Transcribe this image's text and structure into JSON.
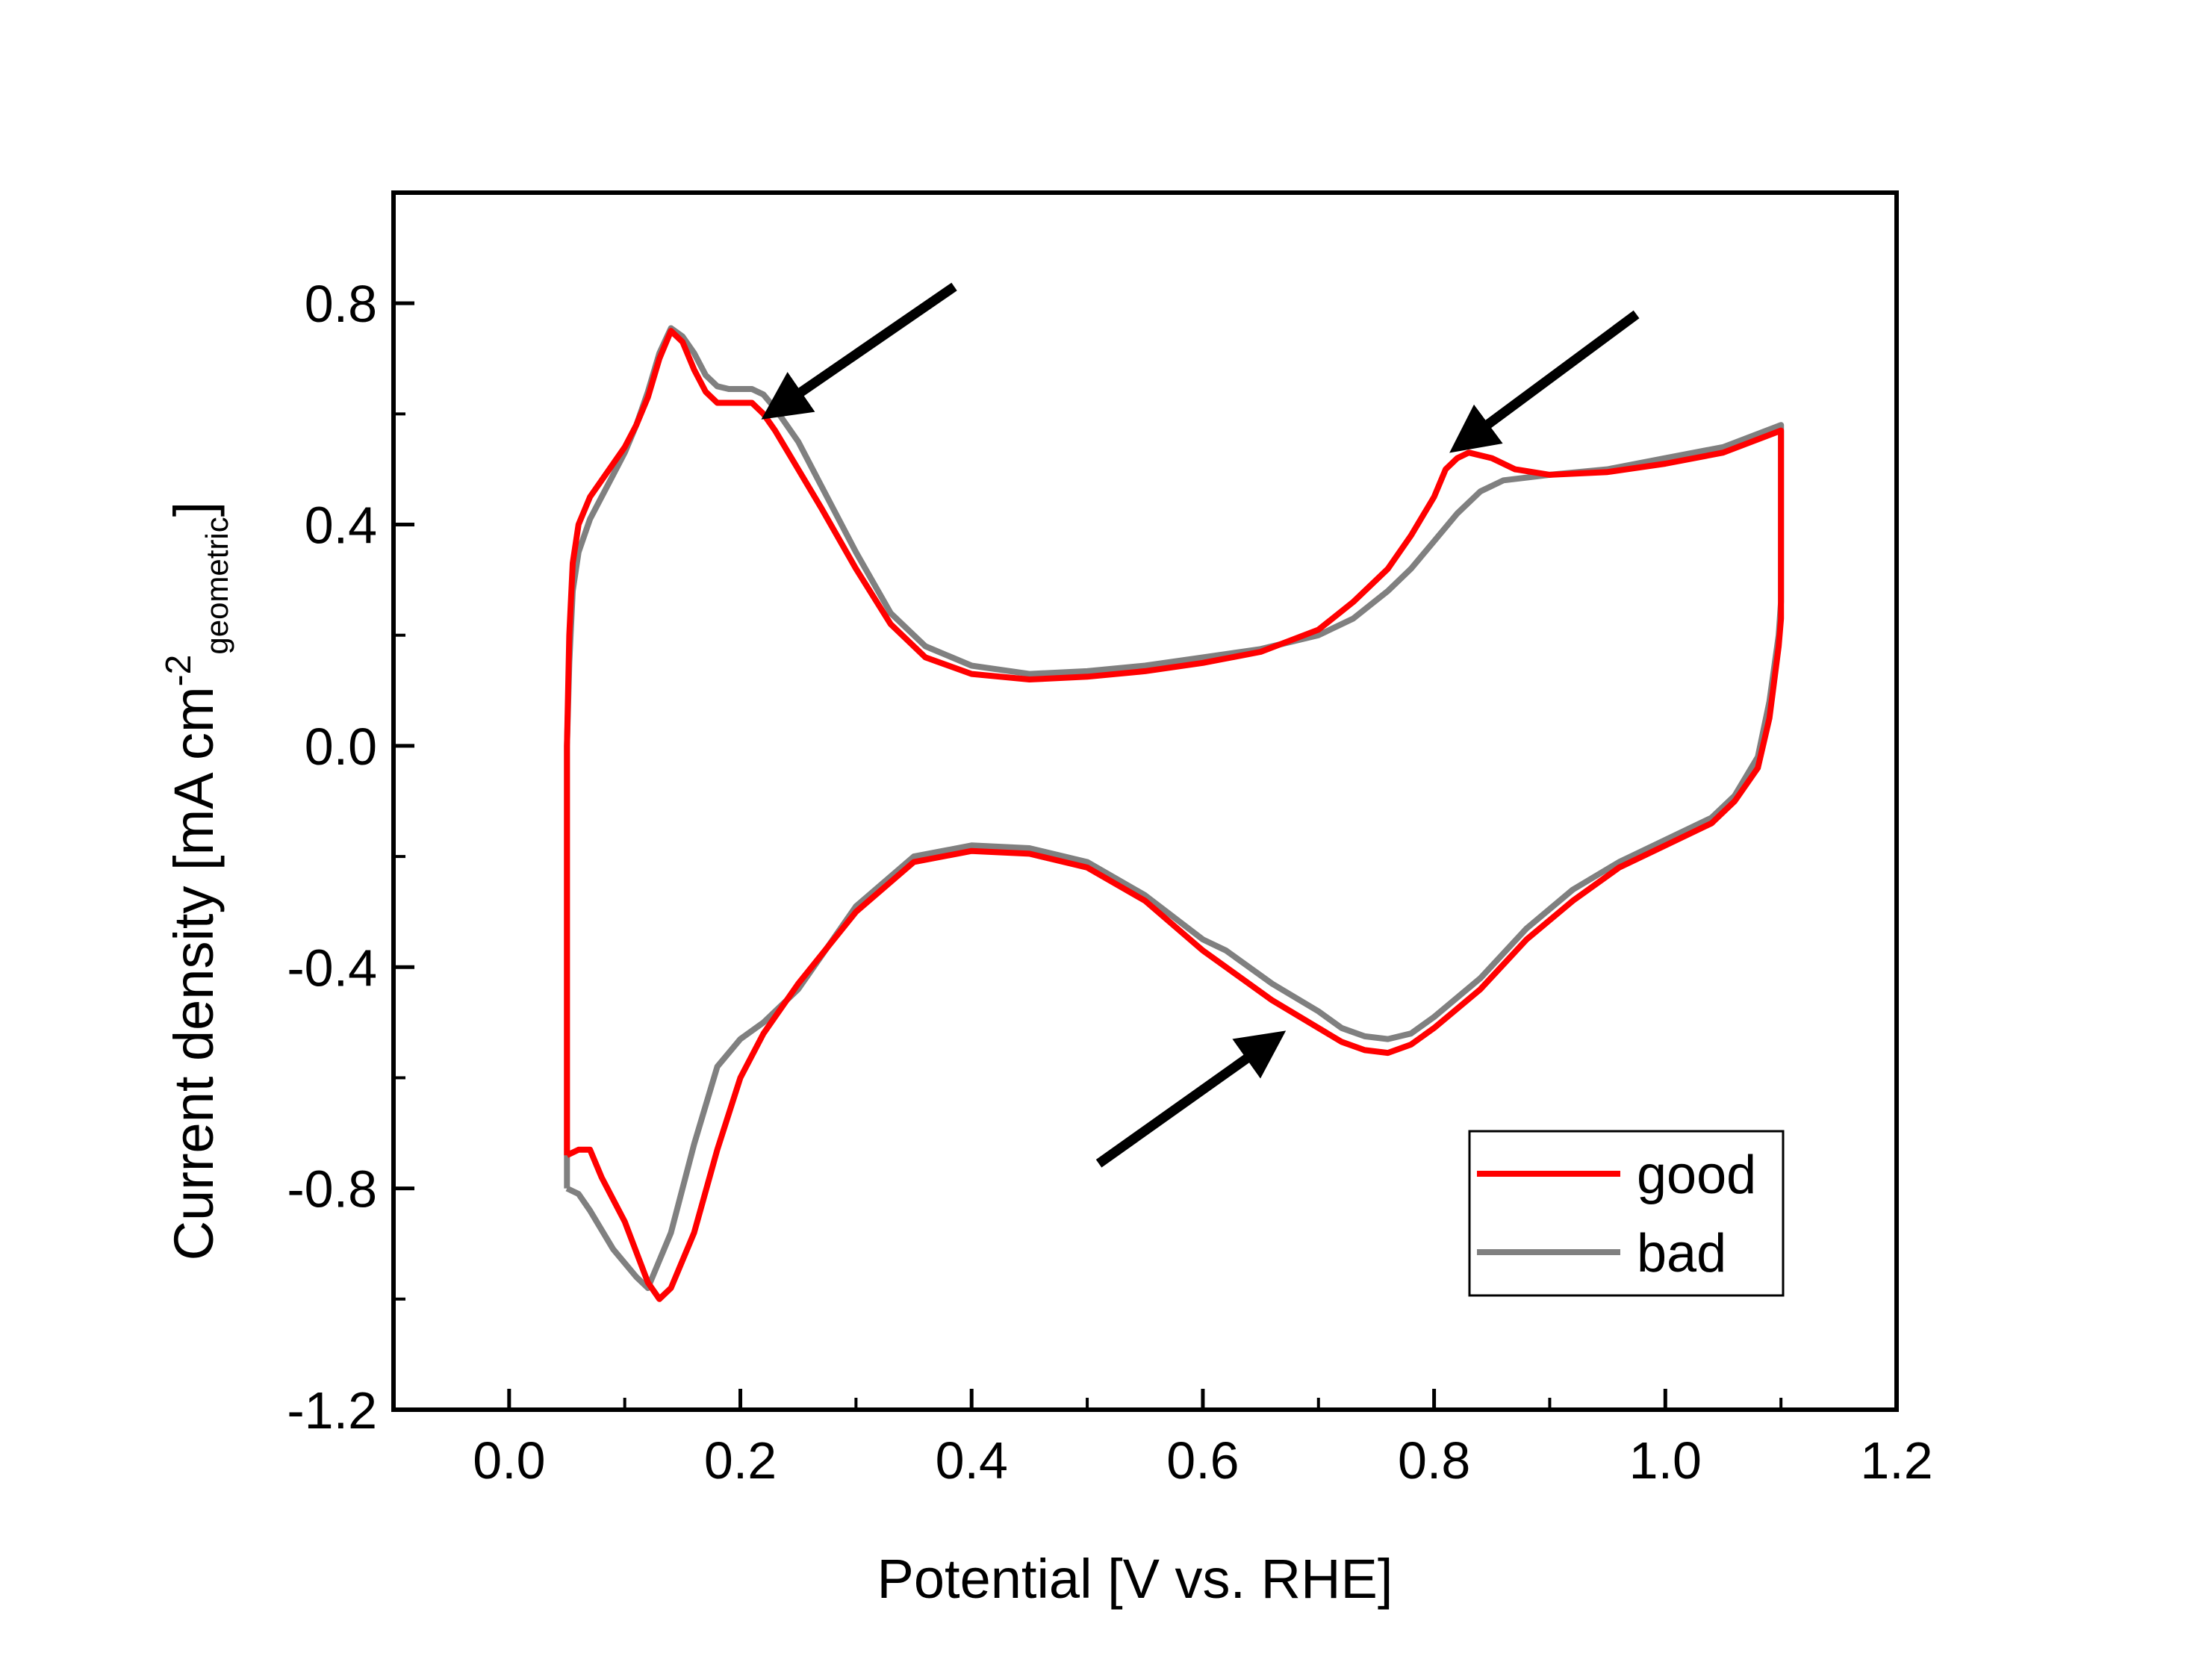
{
  "chart_data": {
    "type": "line",
    "title": "",
    "xlabel": "Potential [V vs. RHE]",
    "ylabel": {
      "main": "Current density [mA cm",
      "sup": "-2",
      "sub": "geometric",
      "close": "]"
    },
    "xlim": [
      -0.1,
      1.2
    ],
    "ylim": [
      -1.2,
      1.0
    ],
    "xticks": [
      0.0,
      0.2,
      0.4,
      0.6,
      0.8,
      1.0,
      1.2
    ],
    "xtick_labels": [
      "0.0",
      "0.2",
      "0.4",
      "0.6",
      "0.8",
      "1.0",
      "1.2"
    ],
    "yticks": [
      -1.2,
      -0.8,
      -0.4,
      0.0,
      0.4,
      0.8
    ],
    "ytick_labels": [
      "-1.2",
      "-0.8",
      "-0.4",
      "0.0",
      "0.4",
      "0.8"
    ],
    "legend_position": "bottom-right",
    "series": [
      {
        "name": "good",
        "color": "#ff0000",
        "points": [
          [
            0.05,
            -0.74
          ],
          [
            0.05,
            -0.6
          ],
          [
            0.05,
            -0.35
          ],
          [
            0.05,
            0.0
          ],
          [
            0.052,
            0.2
          ],
          [
            0.055,
            0.33
          ],
          [
            0.06,
            0.4
          ],
          [
            0.07,
            0.45
          ],
          [
            0.08,
            0.48
          ],
          [
            0.09,
            0.51
          ],
          [
            0.1,
            0.54
          ],
          [
            0.11,
            0.58
          ],
          [
            0.12,
            0.63
          ],
          [
            0.13,
            0.7
          ],
          [
            0.14,
            0.75
          ],
          [
            0.15,
            0.73
          ],
          [
            0.16,
            0.68
          ],
          [
            0.17,
            0.64
          ],
          [
            0.18,
            0.62
          ],
          [
            0.19,
            0.62
          ],
          [
            0.2,
            0.62
          ],
          [
            0.21,
            0.62
          ],
          [
            0.22,
            0.6
          ],
          [
            0.23,
            0.57
          ],
          [
            0.25,
            0.5
          ],
          [
            0.27,
            0.43
          ],
          [
            0.3,
            0.32
          ],
          [
            0.33,
            0.22
          ],
          [
            0.36,
            0.16
          ],
          [
            0.4,
            0.13
          ],
          [
            0.45,
            0.12
          ],
          [
            0.5,
            0.125
          ],
          [
            0.55,
            0.135
          ],
          [
            0.6,
            0.15
          ],
          [
            0.65,
            0.17
          ],
          [
            0.7,
            0.21
          ],
          [
            0.73,
            0.26
          ],
          [
            0.76,
            0.32
          ],
          [
            0.78,
            0.38
          ],
          [
            0.8,
            0.45
          ],
          [
            0.81,
            0.5
          ],
          [
            0.82,
            0.52
          ],
          [
            0.83,
            0.53
          ],
          [
            0.85,
            0.52
          ],
          [
            0.87,
            0.5
          ],
          [
            0.9,
            0.49
          ],
          [
            0.95,
            0.495
          ],
          [
            1.0,
            0.51
          ],
          [
            1.05,
            0.53
          ],
          [
            1.1,
            0.57
          ],
          [
            1.1,
            0.4
          ],
          [
            1.1,
            0.23
          ],
          [
            1.098,
            0.18
          ],
          [
            1.09,
            0.05
          ],
          [
            1.08,
            -0.04
          ],
          [
            1.06,
            -0.1
          ],
          [
            1.04,
            -0.14
          ],
          [
            1.0,
            -0.18
          ],
          [
            0.96,
            -0.22
          ],
          [
            0.92,
            -0.28
          ],
          [
            0.88,
            -0.35
          ],
          [
            0.84,
            -0.44
          ],
          [
            0.8,
            -0.51
          ],
          [
            0.78,
            -0.54
          ],
          [
            0.76,
            -0.555
          ],
          [
            0.74,
            -0.55
          ],
          [
            0.72,
            -0.535
          ],
          [
            0.7,
            -0.51
          ],
          [
            0.66,
            -0.46
          ],
          [
            0.62,
            -0.4
          ],
          [
            0.6,
            -0.37
          ],
          [
            0.55,
            -0.28
          ],
          [
            0.5,
            -0.22
          ],
          [
            0.45,
            -0.195
          ],
          [
            0.4,
            -0.19
          ],
          [
            0.35,
            -0.21
          ],
          [
            0.3,
            -0.3
          ],
          [
            0.25,
            -0.43
          ],
          [
            0.22,
            -0.52
          ],
          [
            0.2,
            -0.6
          ],
          [
            0.18,
            -0.73
          ],
          [
            0.16,
            -0.88
          ],
          [
            0.14,
            -0.98
          ],
          [
            0.13,
            -1.0
          ],
          [
            0.12,
            -0.97
          ],
          [
            0.1,
            -0.86
          ],
          [
            0.08,
            -0.78
          ],
          [
            0.07,
            -0.73
          ],
          [
            0.06,
            -0.73
          ],
          [
            0.05,
            -0.74
          ]
        ]
      },
      {
        "name": "bad",
        "color": "#808080",
        "points": [
          [
            0.05,
            -0.8
          ],
          [
            0.05,
            -0.6
          ],
          [
            0.05,
            -0.3
          ],
          [
            0.05,
            0.0
          ],
          [
            0.052,
            0.15
          ],
          [
            0.055,
            0.28
          ],
          [
            0.06,
            0.35
          ],
          [
            0.07,
            0.41
          ],
          [
            0.08,
            0.45
          ],
          [
            0.09,
            0.49
          ],
          [
            0.1,
            0.53
          ],
          [
            0.11,
            0.58
          ],
          [
            0.12,
            0.64
          ],
          [
            0.13,
            0.71
          ],
          [
            0.14,
            0.755
          ],
          [
            0.15,
            0.74
          ],
          [
            0.16,
            0.71
          ],
          [
            0.17,
            0.67
          ],
          [
            0.18,
            0.65
          ],
          [
            0.19,
            0.645
          ],
          [
            0.2,
            0.645
          ],
          [
            0.21,
            0.645
          ],
          [
            0.22,
            0.635
          ],
          [
            0.23,
            0.61
          ],
          [
            0.25,
            0.55
          ],
          [
            0.27,
            0.47
          ],
          [
            0.3,
            0.35
          ],
          [
            0.33,
            0.24
          ],
          [
            0.36,
            0.18
          ],
          [
            0.4,
            0.145
          ],
          [
            0.45,
            0.13
          ],
          [
            0.5,
            0.135
          ],
          [
            0.55,
            0.145
          ],
          [
            0.6,
            0.16
          ],
          [
            0.65,
            0.175
          ],
          [
            0.7,
            0.2
          ],
          [
            0.73,
            0.23
          ],
          [
            0.76,
            0.28
          ],
          [
            0.78,
            0.32
          ],
          [
            0.8,
            0.37
          ],
          [
            0.82,
            0.42
          ],
          [
            0.84,
            0.46
          ],
          [
            0.86,
            0.48
          ],
          [
            0.9,
            0.49
          ],
          [
            0.95,
            0.5
          ],
          [
            1.0,
            0.52
          ],
          [
            1.05,
            0.54
          ],
          [
            1.1,
            0.58
          ],
          [
            1.1,
            0.4
          ],
          [
            1.1,
            0.26
          ],
          [
            1.098,
            0.2
          ],
          [
            1.09,
            0.08
          ],
          [
            1.08,
            -0.02
          ],
          [
            1.06,
            -0.09
          ],
          [
            1.04,
            -0.13
          ],
          [
            1.0,
            -0.17
          ],
          [
            0.96,
            -0.21
          ],
          [
            0.92,
            -0.26
          ],
          [
            0.88,
            -0.33
          ],
          [
            0.84,
            -0.42
          ],
          [
            0.8,
            -0.49
          ],
          [
            0.78,
            -0.52
          ],
          [
            0.76,
            -0.53
          ],
          [
            0.74,
            -0.525
          ],
          [
            0.72,
            -0.51
          ],
          [
            0.7,
            -0.48
          ],
          [
            0.66,
            -0.43
          ],
          [
            0.62,
            -0.37
          ],
          [
            0.6,
            -0.35
          ],
          [
            0.55,
            -0.27
          ],
          [
            0.5,
            -0.21
          ],
          [
            0.45,
            -0.185
          ],
          [
            0.4,
            -0.18
          ],
          [
            0.35,
            -0.2
          ],
          [
            0.3,
            -0.29
          ],
          [
            0.25,
            -0.44
          ],
          [
            0.22,
            -0.5
          ],
          [
            0.2,
            -0.53
          ],
          [
            0.18,
            -0.58
          ],
          [
            0.16,
            -0.72
          ],
          [
            0.14,
            -0.88
          ],
          [
            0.12,
            -0.98
          ],
          [
            0.11,
            -0.96
          ],
          [
            0.09,
            -0.91
          ],
          [
            0.07,
            -0.84
          ],
          [
            0.06,
            -0.81
          ],
          [
            0.05,
            -0.8
          ]
        ]
      }
    ],
    "annotations": [
      {
        "type": "arrow",
        "from": [
          0.385,
          0.83
        ],
        "to": [
          0.225,
          0.6
        ]
      },
      {
        "type": "arrow",
        "from": [
          0.975,
          0.78
        ],
        "to": [
          0.82,
          0.54
        ]
      },
      {
        "type": "arrow",
        "from": [
          0.51,
          -0.755
        ],
        "to": [
          0.665,
          -0.525
        ]
      }
    ]
  }
}
